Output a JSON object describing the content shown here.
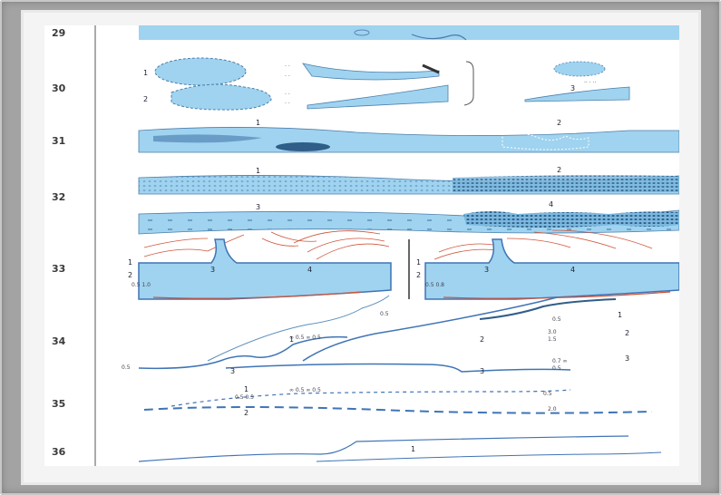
{
  "row_numbers": [
    "29",
    "30",
    "31",
    "32",
    "33",
    "34",
    "35",
    "36"
  ],
  "item_numbers": {
    "r30": [
      "1",
      "2",
      "3"
    ],
    "r31": [
      "1",
      "2"
    ],
    "r32": [
      "1",
      "2",
      "3",
      "4"
    ],
    "r33": [
      "1",
      "2",
      "3",
      "4",
      "1",
      "2",
      "3",
      "4"
    ],
    "r34": [
      "1",
      "2",
      "3",
      "3",
      "1",
      "2",
      "3"
    ],
    "r35": [
      "1",
      "2"
    ],
    "r36": [
      "1"
    ]
  },
  "colors": {
    "frame": "#a3a3a3",
    "water": "#9fd3ef",
    "water_dark": "#2f5e88",
    "line_blue": "#3f74b6",
    "red": "#d0553a"
  }
}
